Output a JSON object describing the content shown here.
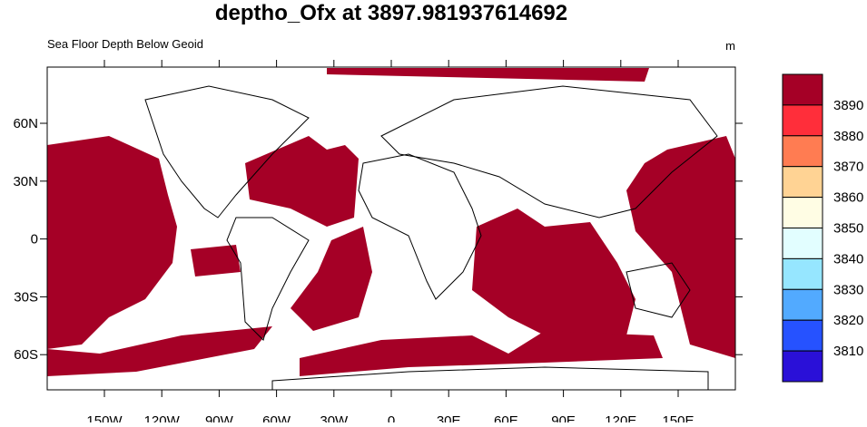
{
  "title": "deptho_Ofx at 3897.981937614692",
  "subtitle": "Sea Floor Depth Below Geoid",
  "units": "m",
  "map": {
    "lon_labels": [
      "150W",
      "120W",
      "90W",
      "60W",
      "30W",
      "0",
      "30E",
      "60E",
      "90E",
      "120E",
      "150E"
    ],
    "lat_labels": [
      "60N",
      "30N",
      "0",
      "30S",
      "60S"
    ]
  },
  "colorbar": {
    "labels": [
      3890,
      3880,
      3870,
      3860,
      3850,
      3840,
      3830,
      3820,
      3810
    ],
    "colors": [
      "#a50026",
      "#ff2e3a",
      "#ff7c52",
      "#ffd394",
      "#fffde4",
      "#e2feff",
      "#96e6ff",
      "#52aaff",
      "#2652ff",
      "#2a10d8"
    ]
  }
}
